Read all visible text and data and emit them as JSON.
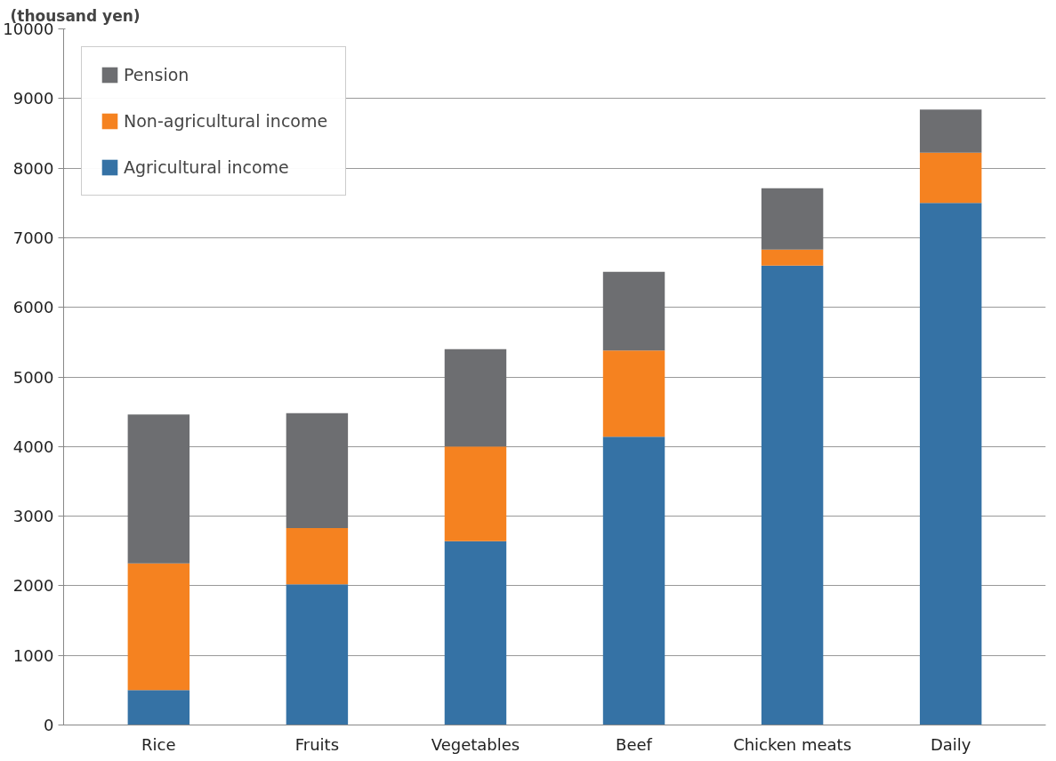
{
  "chart_data": {
    "type": "bar",
    "stacked": true,
    "ylabel": "(thousand yen)",
    "categories": [
      "Rice",
      "Fruits",
      "Vegetables",
      "Beef",
      "Chicken meats",
      "Daily"
    ],
    "series": [
      {
        "name": "Agricultural income",
        "color": "#3572a5",
        "values": [
          500,
          2020,
          2640,
          4140,
          6600,
          7500
        ]
      },
      {
        "name": "Non-agricultural income",
        "color": "#f58220",
        "values": [
          1820,
          810,
          1360,
          1240,
          230,
          720
        ]
      },
      {
        "name": "Pension",
        "color": "#6d6e71",
        "values": [
          2140,
          1650,
          1400,
          1130,
          880,
          620
        ]
      }
    ],
    "ylim": [
      0,
      10000
    ],
    "yticks": [
      0,
      1000,
      2000,
      3000,
      4000,
      5000,
      6000,
      7000,
      8000,
      9000,
      10000
    ],
    "grid": "y",
    "legend": "top left"
  }
}
